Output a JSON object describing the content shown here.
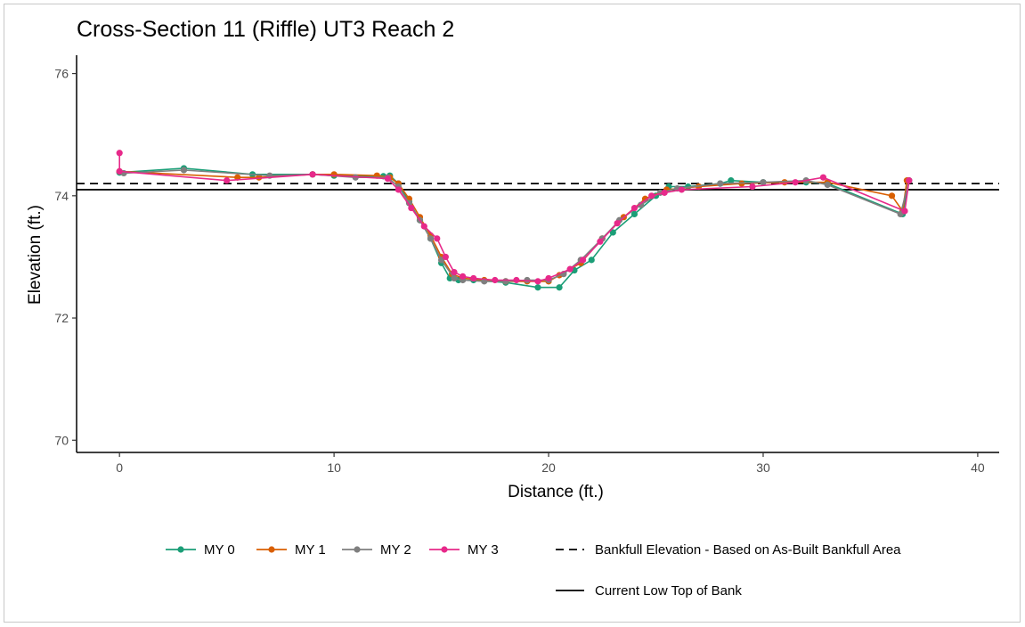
{
  "chart_data": {
    "type": "line",
    "title": "Cross-Section 11 (Riffle) UT3 Reach 2",
    "xlabel": "Distance (ft.)",
    "ylabel": "Elevation (ft.)",
    "xlim": [
      -2,
      41
    ],
    "ylim": [
      69.8,
      76.3
    ],
    "x_ticks": [
      0,
      10,
      20,
      30,
      40
    ],
    "x_tick_labels": [
      "0",
      "10",
      "20",
      "30",
      "40"
    ],
    "y_ticks": [
      70,
      72,
      74,
      76
    ],
    "y_tick_labels": [
      "70",
      "72",
      "74",
      "76"
    ],
    "grid": false,
    "legend_position": "bottom",
    "colors": {
      "MY 0": "#1b9e77",
      "MY 1": "#d95f02",
      "MY 2": "#7f7f7f",
      "MY 3": "#e7298a",
      "reference": "#000000"
    },
    "series": [
      {
        "name": "MY 0",
        "x": [
          0,
          3,
          6.2,
          9,
          10,
          12.3,
          12.6,
          13,
          13.5,
          14,
          14.5,
          15,
          15.4,
          15.8,
          16.5,
          18,
          19.5,
          20.5,
          21.2,
          22,
          23,
          24,
          25,
          25.6,
          26.5,
          28,
          28.5,
          30,
          32,
          33,
          36.5,
          36.8
        ],
        "y": [
          74.38,
          74.45,
          74.35,
          74.35,
          74.33,
          74.32,
          74.33,
          74.2,
          73.9,
          73.6,
          73.3,
          72.9,
          72.65,
          72.62,
          72.62,
          72.58,
          72.5,
          72.5,
          72.78,
          72.95,
          73.4,
          73.7,
          74.0,
          74.15,
          74.15,
          74.2,
          74.25,
          74.22,
          74.22,
          74.2,
          73.7,
          74.25
        ]
      },
      {
        "name": "MY 1",
        "x": [
          0,
          5.5,
          6.5,
          9,
          10,
          12,
          12.6,
          13,
          13.5,
          14,
          14.5,
          15,
          15.5,
          16,
          17,
          18,
          19,
          20,
          20.5,
          21.5,
          22.5,
          23.5,
          24.5,
          25.5,
          27,
          29,
          31,
          33,
          36,
          36.5,
          36.7
        ],
        "y": [
          74.4,
          74.3,
          74.3,
          74.35,
          74.35,
          74.33,
          74.3,
          74.2,
          73.95,
          73.65,
          73.35,
          73.0,
          72.72,
          72.65,
          72.62,
          72.6,
          72.6,
          72.6,
          72.7,
          72.9,
          73.3,
          73.65,
          73.95,
          74.1,
          74.15,
          74.2,
          74.22,
          74.22,
          74.0,
          73.75,
          74.25
        ]
      },
      {
        "name": "MY 2",
        "x": [
          0.2,
          3,
          7,
          9,
          11,
          12.5,
          13,
          13.5,
          14,
          14.5,
          15,
          15.6,
          16,
          17,
          18,
          19,
          20,
          20.7,
          21.5,
          22.5,
          23.3,
          24.3,
          25.2,
          26,
          28,
          30,
          32,
          33,
          36.4,
          36.8
        ],
        "y": [
          74.37,
          74.42,
          74.33,
          74.35,
          74.3,
          74.3,
          74.15,
          73.88,
          73.6,
          73.3,
          72.95,
          72.65,
          72.62,
          72.6,
          72.6,
          72.62,
          72.62,
          72.72,
          72.95,
          73.3,
          73.6,
          73.85,
          74.05,
          74.12,
          74.2,
          74.22,
          74.25,
          74.18,
          73.7,
          74.25
        ]
      },
      {
        "name": "MY 3",
        "x": [
          0,
          0,
          5,
          9,
          12.5,
          13,
          13.6,
          14.2,
          14.8,
          15.2,
          15.6,
          16,
          16.5,
          17.5,
          18.5,
          19.5,
          20,
          21,
          21.6,
          22.4,
          23.2,
          24,
          24.8,
          25.4,
          26.2,
          29.5,
          31.5,
          32.8,
          36.6,
          36.8
        ],
        "y": [
          74.7,
          74.4,
          74.25,
          74.35,
          74.28,
          74.1,
          73.8,
          73.5,
          73.3,
          73.0,
          72.75,
          72.68,
          72.65,
          72.62,
          72.62,
          72.6,
          72.65,
          72.8,
          72.95,
          73.25,
          73.55,
          73.8,
          74.0,
          74.05,
          74.1,
          74.15,
          74.22,
          74.3,
          73.75,
          74.25
        ]
      }
    ],
    "reference_lines": [
      {
        "name": "Bankfull Elevation - Based on As-Built Bankfull Area",
        "y": 74.2,
        "style": "dashed"
      },
      {
        "name": "Current Low Top of Bank",
        "y": 74.1,
        "style": "solid"
      }
    ]
  }
}
